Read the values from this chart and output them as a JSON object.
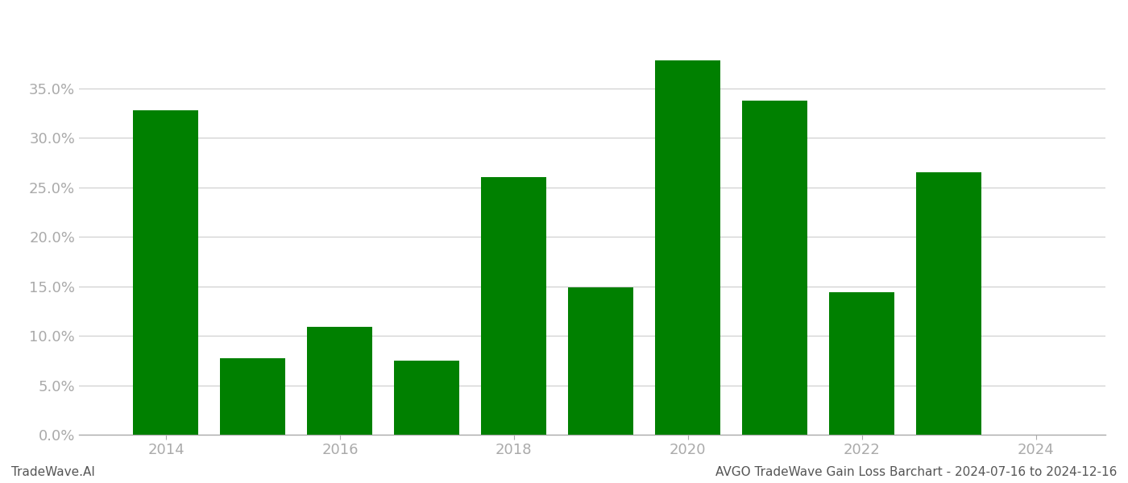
{
  "years": [
    2014,
    2015,
    2016,
    2017,
    2018,
    2019,
    2020,
    2021,
    2022,
    2023
  ],
  "values": [
    0.328,
    0.077,
    0.109,
    0.075,
    0.26,
    0.149,
    0.378,
    0.338,
    0.144,
    0.265
  ],
  "bar_color": "#008000",
  "background_color": "#ffffff",
  "tick_color": "#aaaaaa",
  "grid_color": "#cccccc",
  "xlabel_ticks": [
    2014,
    2016,
    2018,
    2020,
    2022,
    2024
  ],
  "ylim": [
    0,
    0.415
  ],
  "yticks": [
    0.0,
    0.05,
    0.1,
    0.15,
    0.2,
    0.25,
    0.3,
    0.35
  ],
  "footer_left": "TradeWave.AI",
  "footer_right": "AVGO TradeWave Gain Loss Barchart - 2024-07-16 to 2024-12-16",
  "footer_fontsize": 11,
  "tick_fontsize": 13,
  "bar_width": 0.75
}
